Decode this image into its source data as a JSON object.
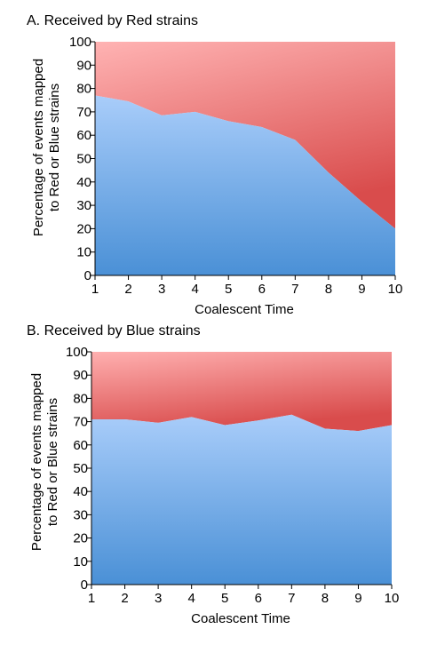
{
  "chart_data": [
    {
      "type": "area",
      "stacked": true,
      "percent": true,
      "title": "A. Received by Red strains",
      "xlabel": "Coalescent Time",
      "ylabel_lines": [
        "Percentage of events mapped",
        "to Red or Blue strains"
      ],
      "x": [
        1,
        2,
        3,
        4,
        5,
        6,
        7,
        8,
        9,
        10
      ],
      "ylim": [
        0,
        100
      ],
      "yticks": [
        0,
        10,
        20,
        30,
        40,
        50,
        60,
        70,
        80,
        90,
        100
      ],
      "series": [
        {
          "color": "#4f94d8",
          "values": [
            77,
            74.5,
            68.5,
            70,
            66,
            63.5,
            58,
            44,
            31.5,
            20
          ]
        },
        {
          "color": "#e06060",
          "values": [
            23,
            25.5,
            31.5,
            30,
            34,
            36.5,
            42,
            56,
            68.5,
            80
          ]
        }
      ],
      "grid": false,
      "legend": "none"
    },
    {
      "type": "area",
      "stacked": true,
      "percent": true,
      "title": "B. Received by Blue strains",
      "xlabel": "Coalescent Time",
      "ylabel_lines": [
        "Percentage of events mapped",
        "to Red or Blue strains"
      ],
      "x": [
        1,
        2,
        3,
        4,
        5,
        6,
        7,
        8,
        9,
        10
      ],
      "ylim": [
        0,
        100
      ],
      "yticks": [
        0,
        10,
        20,
        30,
        40,
        50,
        60,
        70,
        80,
        90,
        100
      ],
      "series": [
        {
          "color": "#4f94d8",
          "values": [
            71,
            71,
            69.5,
            72,
            68.5,
            70.5,
            73,
            67,
            66,
            68.5
          ]
        },
        {
          "color": "#e06060",
          "values": [
            29,
            29,
            30.5,
            28,
            31.5,
            29.5,
            27,
            33,
            34,
            31.5
          ]
        }
      ],
      "grid": false,
      "legend": "none"
    }
  ]
}
